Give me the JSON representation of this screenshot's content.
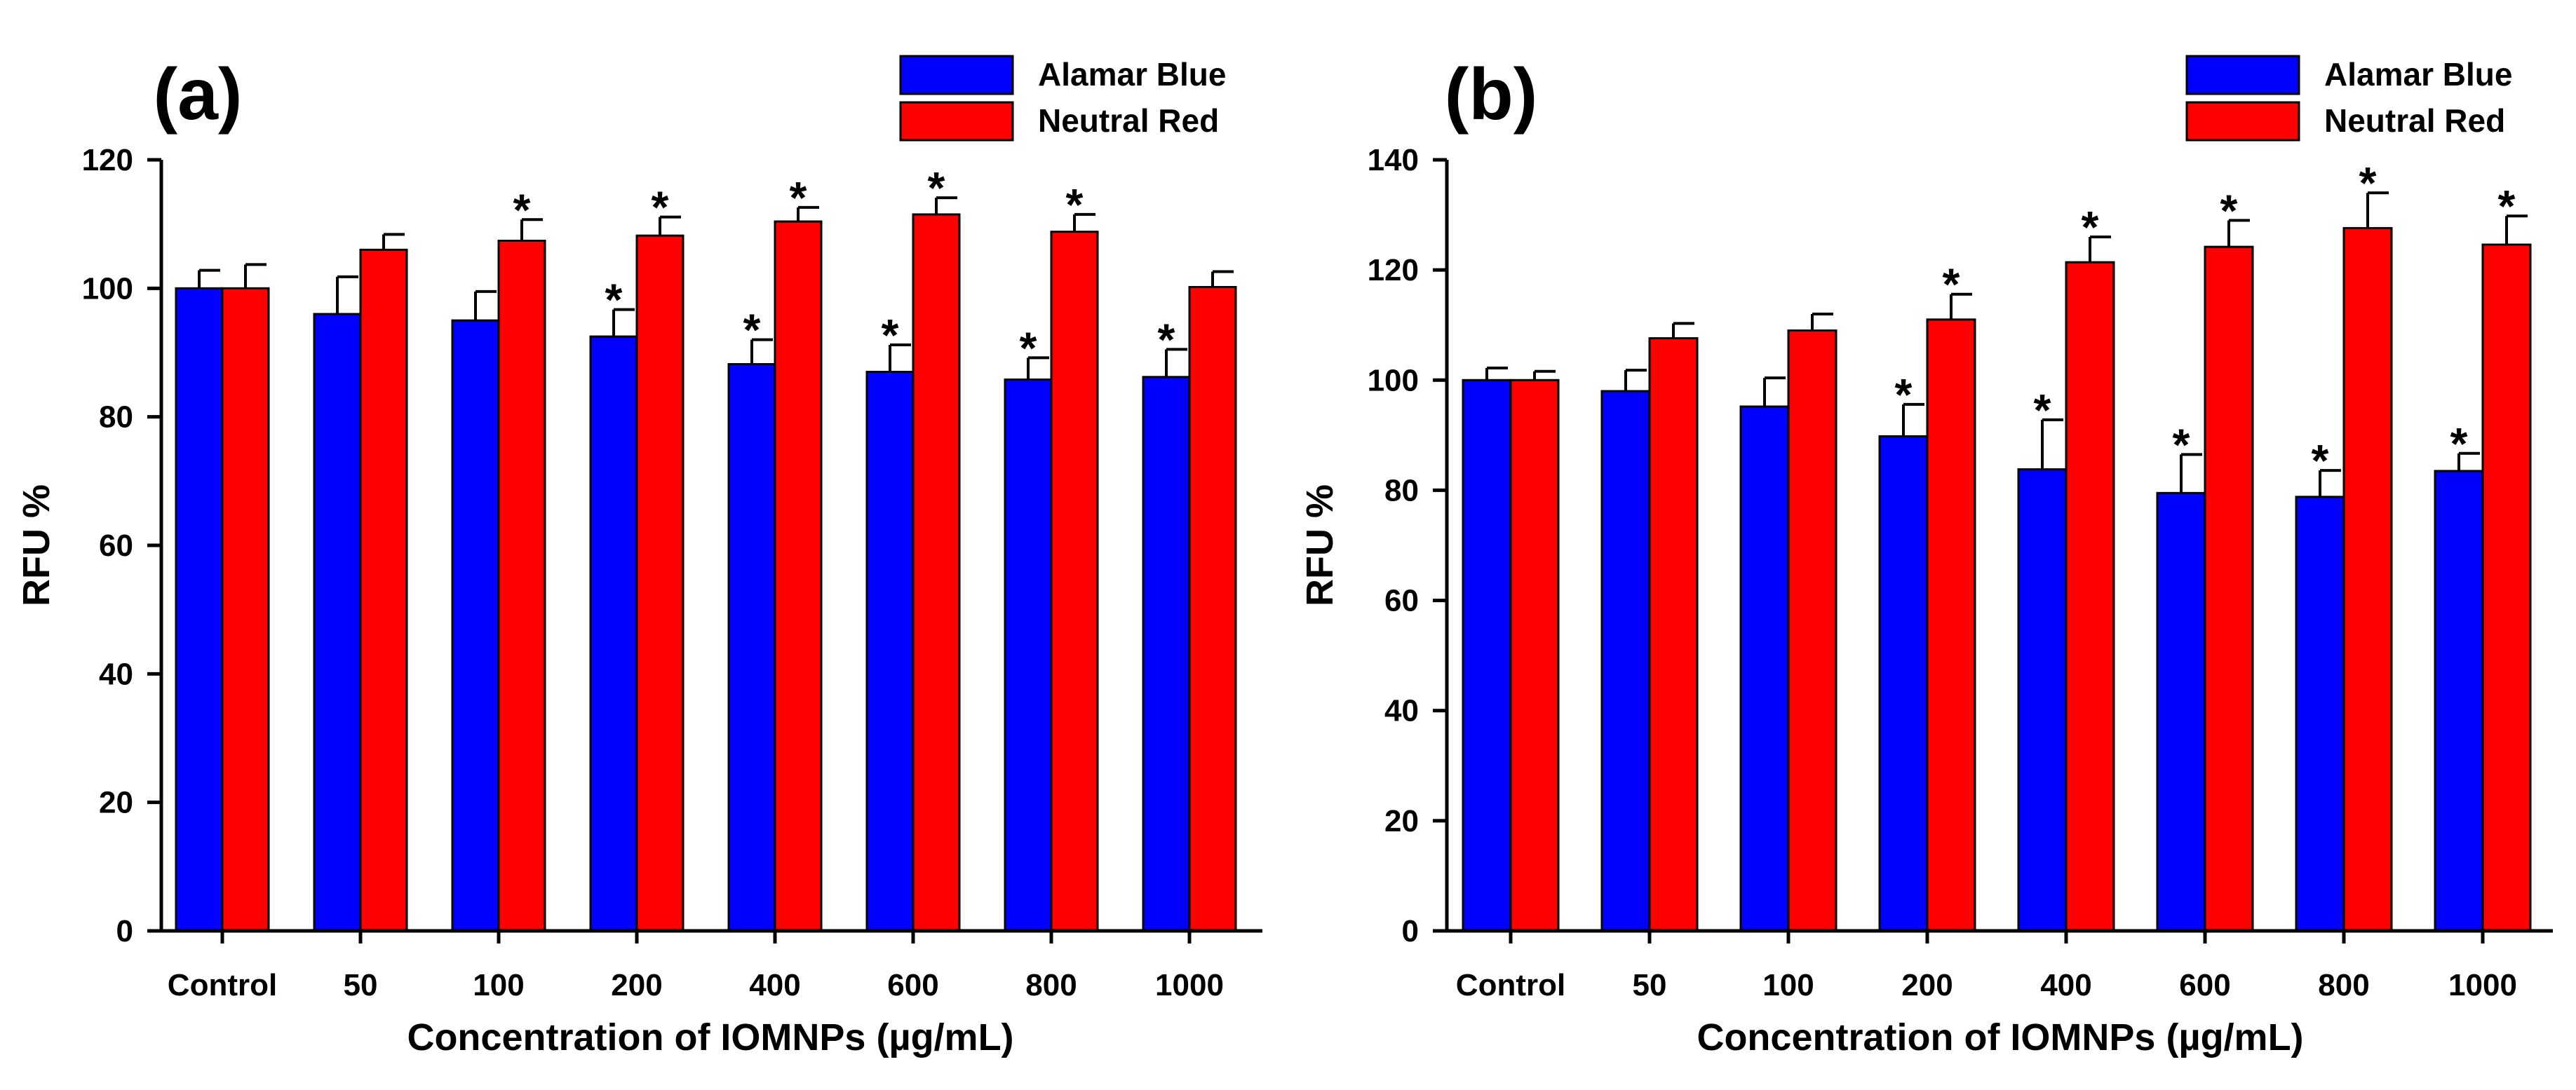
{
  "chart_data": [
    {
      "type": "bar",
      "panel_label": "(a)",
      "title": "",
      "xlabel": "Concentration of IOMNPs (µg/mL)",
      "ylabel": "RFU %",
      "ylim": [
        0,
        120
      ],
      "yticks": [
        0,
        20,
        40,
        60,
        80,
        100,
        120
      ],
      "categories": [
        "Control",
        "50",
        "100",
        "200",
        "400",
        "600",
        "800",
        "1000"
      ],
      "legend_position": "top-right",
      "grid": false,
      "series": [
        {
          "name": "Alamar Blue",
          "color": "#0000ff",
          "values": [
            100,
            96,
            95,
            92.5,
            88.2,
            87,
            85.8,
            86.2
          ],
          "errors": [
            2.8,
            5.8,
            4.5,
            4.2,
            3.8,
            4.2,
            3.4,
            4.3
          ],
          "significant": [
            false,
            false,
            false,
            true,
            true,
            true,
            true,
            true
          ]
        },
        {
          "name": "Neutral Red",
          "color": "#ff0000",
          "values": [
            100,
            106,
            107.4,
            108.2,
            110.4,
            111.5,
            108.8,
            100.2
          ],
          "errors": [
            3.7,
            2.4,
            3.3,
            2.9,
            2.2,
            2.6,
            2.7,
            2.4
          ],
          "significant": [
            false,
            false,
            true,
            true,
            true,
            true,
            true,
            false
          ]
        }
      ],
      "significance_marker": "*"
    },
    {
      "type": "bar",
      "panel_label": "(b)",
      "title": "",
      "xlabel": "Concentration of IOMNPs (µg/mL)",
      "ylabel": "RFU %",
      "ylim": [
        0,
        140
      ],
      "yticks": [
        0,
        20,
        40,
        60,
        80,
        100,
        120,
        140
      ],
      "categories": [
        "Control",
        "50",
        "100",
        "200",
        "400",
        "600",
        "800",
        "1000"
      ],
      "legend_position": "top-right",
      "grid": false,
      "series": [
        {
          "name": "Alamar Blue",
          "color": "#0000ff",
          "values": [
            100,
            98,
            95.2,
            89.8,
            83.8,
            79.5,
            78.8,
            83.5
          ],
          "errors": [
            2.2,
            3.8,
            5.2,
            5.8,
            9,
            7,
            4.8,
            3.2
          ],
          "significant": [
            false,
            false,
            false,
            true,
            true,
            true,
            true,
            true
          ]
        },
        {
          "name": "Neutral Red",
          "color": "#ff0000",
          "values": [
            100,
            107.6,
            109,
            111,
            121.4,
            124.2,
            127.6,
            124.6
          ],
          "errors": [
            1.6,
            2.7,
            3,
            4.6,
            4.6,
            4.8,
            6.4,
            5.2
          ],
          "significant": [
            false,
            false,
            false,
            true,
            true,
            true,
            true,
            true
          ]
        }
      ],
      "significance_marker": "*"
    }
  ]
}
